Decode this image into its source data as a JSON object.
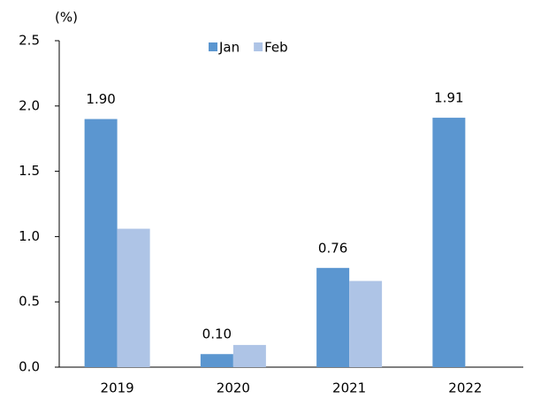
{
  "chart_data": {
    "type": "bar",
    "y_label": "(%)",
    "categories": [
      "2019",
      "2020",
      "2021",
      "2022"
    ],
    "series": [
      {
        "name": "Jan",
        "color": "#5b96d0",
        "values": [
          1.9,
          0.1,
          0.76,
          1.91
        ],
        "value_labels": [
          "1.90",
          "0.10",
          "0.76",
          "1.91"
        ]
      },
      {
        "name": "Feb",
        "color": "#aec4e6",
        "values": [
          1.06,
          0.17,
          0.66,
          null
        ]
      }
    ],
    "ylim": [
      0,
      2.5
    ],
    "yticks": [
      {
        "value": 0,
        "label": "0.0"
      },
      0.5,
      {
        "value": 1,
        "label": "1.0"
      },
      1.5,
      {
        "value": 2,
        "label": "2.0"
      },
      2.5
    ],
    "legend": "top"
  }
}
